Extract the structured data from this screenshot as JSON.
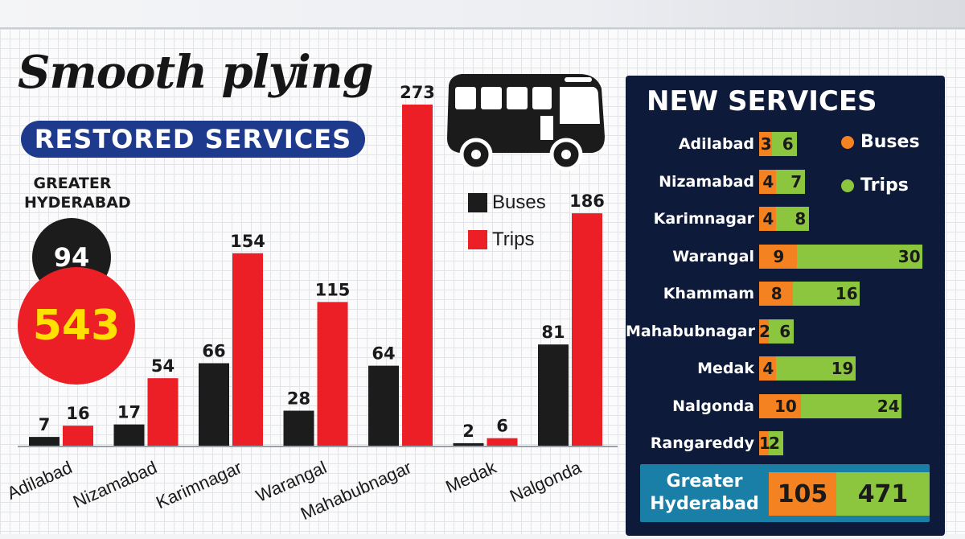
{
  "headline": "Smooth plying",
  "section_title": "RESTORED SERVICES",
  "greater_hyderabad": {
    "label": "GREATER\nHYDERABAD",
    "buses": "94",
    "trips": "543"
  },
  "colors": {
    "buses": "#1c1c1c",
    "trips": "#ec1f26",
    "nav": "#1e3a8c",
    "new_buses": "#f58220",
    "new_trips": "#8cc63f",
    "panel": "#0d1a3a",
    "gh_box": "#1a7fa6"
  },
  "icons": {
    "bus": "bus-icon"
  },
  "chart_data": [
    {
      "type": "bar",
      "title": "RESTORED SERVICES",
      "categories": [
        "Adilabad",
        "Nizamabad",
        "Karimnagar",
        "Warangal",
        "Mahabubnagar",
        "Medak",
        "Nalgonda"
      ],
      "series": [
        {
          "name": "Buses",
          "values": [
            7,
            17,
            66,
            28,
            64,
            2,
            81
          ]
        },
        {
          "name": "Trips",
          "values": [
            16,
            54,
            154,
            115,
            273,
            6,
            186
          ]
        }
      ],
      "ylim": [
        0,
        273
      ],
      "legend": "top-right",
      "grid": false
    },
    {
      "type": "bar",
      "orientation": "horizontal",
      "stacked": true,
      "title": "NEW SERVICES",
      "categories": [
        "Adilabad",
        "Nizamabad",
        "Karimnagar",
        "Warangal",
        "Khammam",
        "Mahabubnagar",
        "Medak",
        "Nalgonda",
        "Rangareddy"
      ],
      "series": [
        {
          "name": "Buses",
          "values": [
            3,
            4,
            4,
            9,
            8,
            2,
            4,
            10,
            1
          ]
        },
        {
          "name": "Trips",
          "values": [
            6,
            7,
            8,
            30,
            16,
            6,
            19,
            24,
            2
          ]
        }
      ],
      "total": {
        "label": "Greater\nHyderabad",
        "buses": "105",
        "trips": "471"
      },
      "legend": "top-right"
    }
  ]
}
